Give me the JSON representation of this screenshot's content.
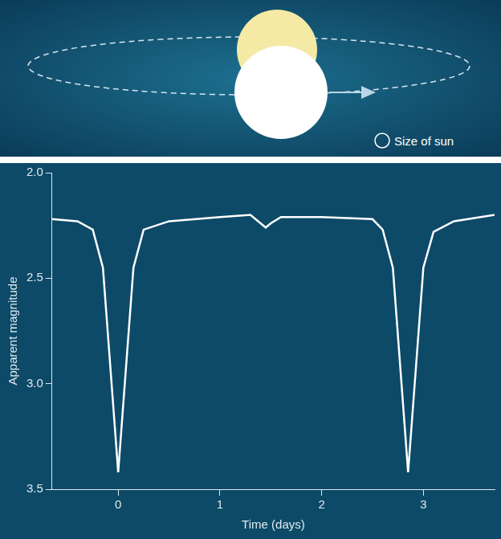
{
  "diagram": {
    "scale_label": "Size of sun"
  },
  "chart_data": {
    "type": "line",
    "x_label": "Time (days)",
    "y_label": "Apparent magnitude",
    "x": [
      -0.65,
      -0.4,
      -0.25,
      -0.15,
      0,
      0.15,
      0.25,
      0.5,
      1.0,
      1.3,
      1.4,
      1.45,
      1.5,
      1.6,
      2.0,
      2.5,
      2.6,
      2.7,
      2.85,
      3.0,
      3.1,
      3.3,
      3.7
    ],
    "values": [
      2.22,
      2.23,
      2.27,
      2.45,
      3.42,
      2.45,
      2.27,
      2.23,
      2.21,
      2.2,
      2.24,
      2.26,
      2.24,
      2.21,
      2.21,
      2.22,
      2.27,
      2.45,
      3.42,
      2.45,
      2.28,
      2.23,
      2.2
    ],
    "color": "#ffffff",
    "xlim": [
      -0.65,
      3.7
    ],
    "xticks": [
      0,
      1,
      2,
      3
    ],
    "ylim": [
      3.5,
      2.0
    ],
    "yticks": [
      {
        "value": 2,
        "label": "2.0"
      },
      {
        "value": 2.5,
        "label": "2.5"
      },
      {
        "value": 3,
        "label": "3.0"
      },
      {
        "value": 3.5,
        "label": "3.5"
      }
    ],
    "grid": false
  }
}
